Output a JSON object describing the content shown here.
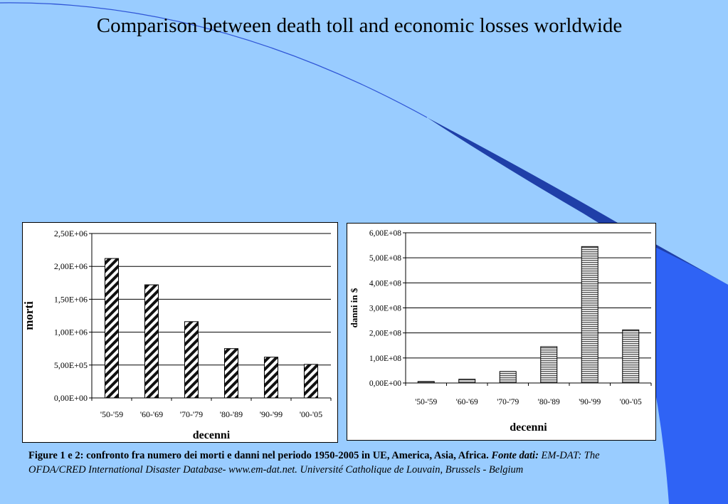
{
  "slide": {
    "title": "Comparison between death toll and economic losses worldwide",
    "background_color": "#99ccff",
    "accent_colors": [
      "#1f3fa8",
      "#2f63f5"
    ]
  },
  "caption": {
    "bold_text": "Figure 1 e 2: confronto fra numero dei morti e danni nel periodo 1950-2005 in UE, America, Asia, Africa.",
    "italic_label": "Fonte dati:",
    "source_text": "EM-DAT: The OFDA/CRED International Disaster Database- www.em-dat.net. Université Catholique de Louvain, Brussels - Belgium"
  },
  "chart_data": [
    {
      "type": "bar",
      "title": "",
      "xlabel": "decenni",
      "ylabel": "morti",
      "categories": [
        "'50-'59",
        "'60-'69",
        "'70-'79",
        "'80-'89",
        "'90-'99",
        "'00-'05"
      ],
      "values": [
        2120000,
        1720000,
        1160000,
        750000,
        620000,
        510000
      ],
      "ylim": [
        0,
        2500000
      ],
      "yticks": [
        0,
        500000,
        1000000,
        1500000,
        2000000,
        2500000
      ],
      "ytick_labels": [
        "0,00E+00",
        "5,00E+05",
        "1,00E+06",
        "1,50E+06",
        "2,00E+06",
        "2,50E+06"
      ],
      "bar_pattern": "diagonal-hatch",
      "grid": true,
      "legend": "none"
    },
    {
      "type": "bar",
      "title": "",
      "xlabel": "decenni",
      "ylabel": "danni in $",
      "categories": [
        "'50-'59",
        "'60-'69",
        "'70-'79",
        "'80-'89",
        "'90-'99",
        "'00-'05"
      ],
      "values": [
        6000000,
        15000000,
        46000000,
        145000000,
        545000000,
        212000000
      ],
      "ylim": [
        0,
        600000000
      ],
      "yticks": [
        0,
        100000000,
        200000000,
        300000000,
        400000000,
        500000000,
        600000000
      ],
      "ytick_labels": [
        "0,00E+00",
        "1,00E+08",
        "2,00E+08",
        "3,00E+08",
        "4,00E+08",
        "5,00E+08",
        "6,00E+08"
      ],
      "bar_pattern": "horizontal-stripes",
      "grid": true,
      "legend": "none"
    }
  ]
}
